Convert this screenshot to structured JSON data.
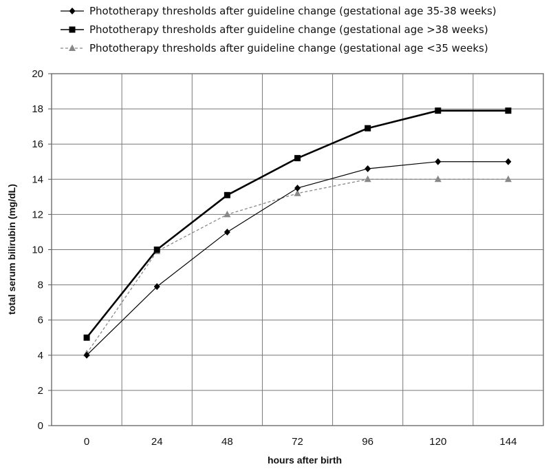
{
  "chart_data": {
    "type": "line",
    "title": "",
    "xlabel": "hours after birth",
    "ylabel": "total serum bilirubin (mg/dL)",
    "x": [
      0,
      24,
      48,
      72,
      96,
      120,
      144
    ],
    "xlim": [
      -12,
      156
    ],
    "ylim": [
      0,
      20
    ],
    "yticks": [
      0,
      2,
      4,
      6,
      8,
      10,
      12,
      14,
      16,
      18,
      20
    ],
    "grid": true,
    "legend_position": "top",
    "series": [
      {
        "name": "Phototherapy thresholds after guideline change (gestational age 35-38 weeks)",
        "values": [
          4.0,
          7.9,
          11.0,
          13.5,
          14.6,
          15.0,
          15.0
        ],
        "marker": "diamond",
        "color": "#000000",
        "line_style": "solid-thin"
      },
      {
        "name": "Phototherapy thresholds after guideline change (gestational age >38 weeks)",
        "values": [
          5.0,
          10.0,
          13.1,
          15.2,
          16.9,
          17.9,
          17.9
        ],
        "marker": "square",
        "color": "#000000",
        "line_style": "solid-thick"
      },
      {
        "name": "Phototherapy thresholds after guideline change (gestational age <35 weeks)",
        "values": [
          4.1,
          9.9,
          12.0,
          13.2,
          14.0,
          14.0,
          14.0
        ],
        "marker": "triangle",
        "color": "#888888",
        "line_style": "dashed"
      }
    ]
  }
}
